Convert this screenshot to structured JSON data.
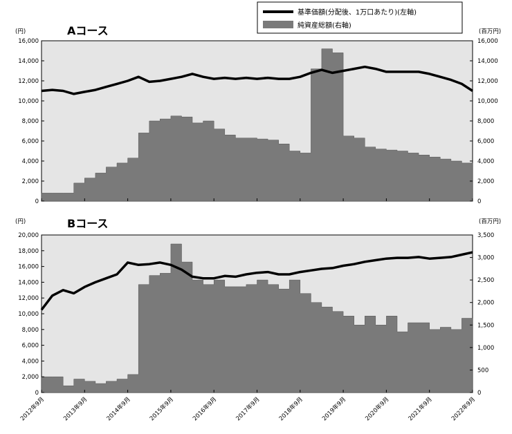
{
  "legend": {
    "line_label": "基準価額(分配後、1万口あたり)(左軸)",
    "area_label": "純資産総額(右軸)"
  },
  "colors": {
    "plot_bg": "#e5e5e5",
    "area_fill": "#7a7a7a",
    "line": "#000000"
  },
  "x_dates": [
    "2012年9月",
    "2013年9月",
    "2014年9月",
    "2015年9月",
    "2016年9月",
    "2017年9月",
    "2018年9月",
    "2019年9月",
    "2020年9月",
    "2021年9月",
    "2022年9月"
  ],
  "chart_data": [
    {
      "type": "line",
      "title": "Aコース",
      "left_unit": "(円)",
      "right_unit": "(百万円)",
      "left_ticks": [
        "16,000",
        "14,000",
        "12,000",
        "10,000",
        "8,000",
        "6,000",
        "4,000",
        "2,000",
        "0"
      ],
      "right_ticks": [
        "16,000",
        "14,000",
        "12,000",
        "10,000",
        "8,000",
        "6,000",
        "4,000",
        "2,000",
        "0"
      ],
      "ylim_left": [
        0,
        16000
      ],
      "ylim_right": [
        0,
        16000
      ],
      "x": [
        2012.75,
        2013.0,
        2013.25,
        2013.5,
        2013.75,
        2014.0,
        2014.25,
        2014.5,
        2014.75,
        2015.0,
        2015.25,
        2015.5,
        2015.75,
        2016.0,
        2016.25,
        2016.5,
        2016.75,
        2017.0,
        2017.25,
        2017.5,
        2017.75,
        2018.0,
        2018.25,
        2018.5,
        2018.75,
        2019.0,
        2019.25,
        2019.5,
        2019.75,
        2020.0,
        2020.25,
        2020.5,
        2020.75,
        2021.0,
        2021.25,
        2021.5,
        2021.75,
        2022.0,
        2022.25,
        2022.5,
        2022.75
      ],
      "series": [
        {
          "name": "基準価額(分配後、1万口あたり)(左軸)",
          "axis": "left",
          "values": [
            11000,
            11100,
            11000,
            10700,
            10900,
            11100,
            11400,
            11700,
            12000,
            12400,
            11900,
            12000,
            12200,
            12400,
            12700,
            12400,
            12200,
            12300,
            12200,
            12300,
            12200,
            12300,
            12200,
            12200,
            12400,
            12800,
            13100,
            12800,
            13000,
            13200,
            13400,
            13200,
            12900,
            12900,
            12900,
            12900,
            12700,
            12400,
            12100,
            11700,
            11000
          ]
        },
        {
          "name": "純資産総額(右軸)",
          "axis": "right",
          "type": "area",
          "values": [
            800,
            800,
            800,
            1800,
            2300,
            2800,
            3400,
            3800,
            4300,
            6800,
            8000,
            8200,
            8500,
            8400,
            7800,
            8000,
            7200,
            6600,
            6300,
            6300,
            6200,
            6100,
            5700,
            5000,
            4800,
            13200,
            15200,
            14800,
            6500,
            6300,
            5400,
            5200,
            5100,
            5000,
            4800,
            4600,
            4400,
            4200,
            4000,
            3800,
            3700
          ]
        }
      ]
    },
    {
      "type": "line",
      "title": "Bコース",
      "left_unit": "(円)",
      "right_unit": "(百万円)",
      "left_ticks": [
        "20,000",
        "18,000",
        "16,000",
        "14,000",
        "12,000",
        "10,000",
        "8,000",
        "6,000",
        "4,000",
        "2,000",
        "0"
      ],
      "right_ticks": [
        "3,500",
        "3,000",
        "2,500",
        "2,000",
        "1,500",
        "1,000",
        "500",
        "0"
      ],
      "ylim_left": [
        0,
        20000
      ],
      "ylim_right": [
        0,
        3500
      ],
      "x": [
        2012.75,
        2013.0,
        2013.25,
        2013.5,
        2013.75,
        2014.0,
        2014.25,
        2014.5,
        2014.75,
        2015.0,
        2015.25,
        2015.5,
        2015.75,
        2016.0,
        2016.25,
        2016.5,
        2016.75,
        2017.0,
        2017.25,
        2017.5,
        2017.75,
        2018.0,
        2018.25,
        2018.5,
        2018.75,
        2019.0,
        2019.25,
        2019.5,
        2019.75,
        2020.0,
        2020.25,
        2020.5,
        2020.75,
        2021.0,
        2021.25,
        2021.5,
        2021.75,
        2022.0,
        2022.25,
        2022.5,
        2022.75
      ],
      "series": [
        {
          "name": "基準価額(分配後、1万口あたり)(左軸)",
          "axis": "left",
          "values": [
            10500,
            12300,
            13000,
            12600,
            13400,
            14000,
            14500,
            15000,
            16500,
            16200,
            16300,
            16500,
            16200,
            15600,
            14700,
            14500,
            14500,
            14800,
            14700,
            15000,
            15200,
            15300,
            15000,
            15000,
            15300,
            15500,
            15700,
            15800,
            16100,
            16300,
            16600,
            16800,
            17000,
            17100,
            17100,
            17200,
            17000,
            17100,
            17200,
            17500,
            17800
          ]
        },
        {
          "name": "純資産総額(右軸)",
          "axis": "right",
          "type": "area",
          "values": [
            350,
            350,
            150,
            300,
            250,
            200,
            250,
            300,
            400,
            2400,
            2600,
            2650,
            3300,
            2900,
            2500,
            2400,
            2500,
            2350,
            2350,
            2400,
            2500,
            2400,
            2300,
            2500,
            2200,
            2000,
            1900,
            1800,
            1700,
            1500,
            1700,
            1500,
            1700,
            1350,
            1550,
            1550,
            1400,
            1450,
            1400,
            1650,
            1550
          ]
        }
      ]
    }
  ]
}
